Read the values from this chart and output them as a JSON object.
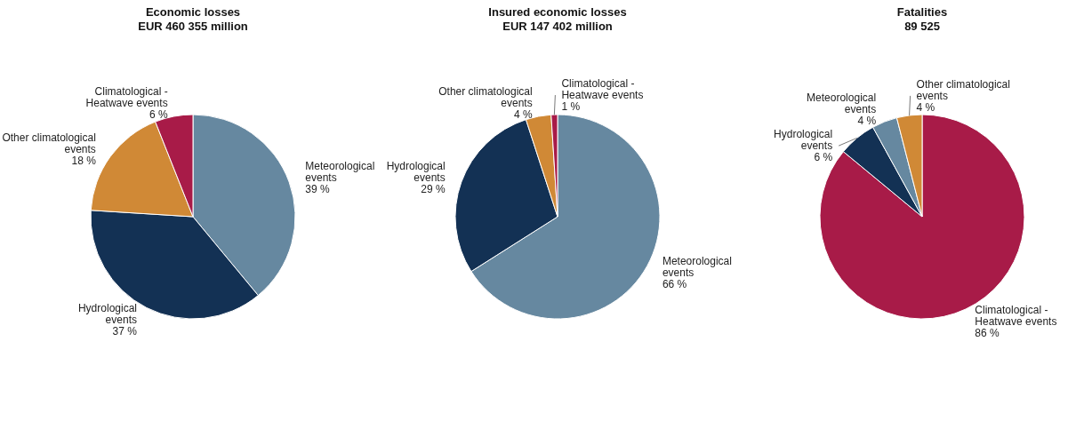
{
  "chart_data": [
    {
      "type": "pie",
      "title": "Economic losses",
      "subtitle": "EUR 460 355 million",
      "categories": [
        "Meteorological events",
        "Hydrological events",
        "Other climatological events",
        "Climatological - Heatwave events"
      ],
      "values": [
        39,
        37,
        18,
        6
      ],
      "value_labels": [
        "39 %",
        "37 %",
        "18 %",
        "6 %"
      ],
      "colors": [
        "#6688a0",
        "#133154",
        "#d08936",
        "#a81b48"
      ]
    },
    {
      "type": "pie",
      "title": "Insured economic losses",
      "subtitle": "EUR 147 402 million",
      "categories": [
        "Meteorological events",
        "Hydrological events",
        "Other climatological events",
        "Climatological - Heatwave events"
      ],
      "values": [
        66,
        29,
        4,
        1
      ],
      "value_labels": [
        "66 %",
        "29 %",
        "4 %",
        "1 %"
      ],
      "colors": [
        "#6688a0",
        "#133154",
        "#d08936",
        "#a81b48"
      ]
    },
    {
      "type": "pie",
      "title": "Fatalities",
      "subtitle": "89 525",
      "categories": [
        "Climatological - Heatwave events",
        "Hydrological events",
        "Meteorological events",
        "Other climatological events"
      ],
      "values": [
        86,
        6,
        4,
        4
      ],
      "value_labels": [
        "86 %",
        "6 %",
        "4 %",
        "4 %"
      ],
      "colors": [
        "#a81b48",
        "#133154",
        "#6688a0",
        "#d08936"
      ]
    }
  ]
}
